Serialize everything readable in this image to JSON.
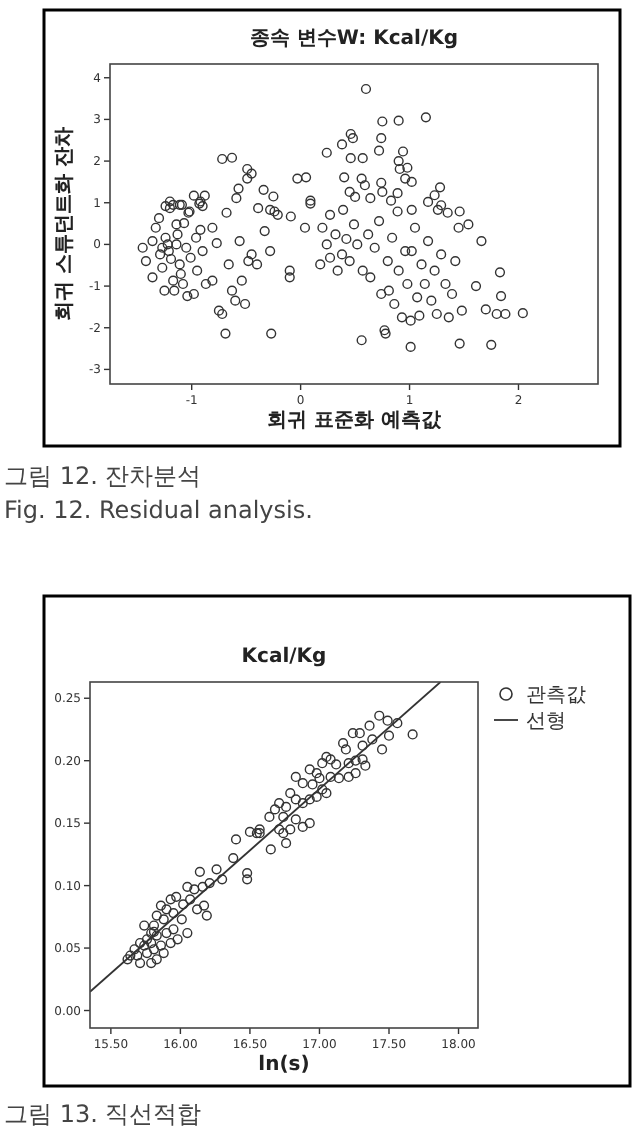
{
  "chart_data": [
    {
      "type": "scatter",
      "title": "종속 변수W: Kcal/Kg",
      "xlabel": "회귀 표준화 예측값",
      "ylabel": "회귀 스튜던트화 잔차",
      "xlim": [
        -1.75,
        2.73
      ],
      "ylim": [
        -3.35,
        4.33
      ],
      "xticks": [
        -1,
        0,
        1,
        2
      ],
      "yticks": [
        -3,
        -2,
        -1,
        0,
        1,
        2,
        3,
        4
      ],
      "marker": "circle",
      "series": [
        {
          "color": "#333333",
          "x": [
            0.6,
            0.75,
            0.9,
            1.15,
            0.46,
            0.48,
            0.38,
            0.74,
            0.94,
            0.24,
            0.46,
            0.57,
            0.72,
            0.9,
            0.98,
            0.91,
            -0.72,
            -0.63,
            -0.49,
            -0.45,
            -0.03,
            0.05,
            0.4,
            0.56,
            0.59,
            0.74,
            0.96,
            1.02,
            1.28,
            1.23,
            1.17,
            1.29,
            0.75,
            0.89,
            0.83,
            0.45,
            0.5,
            0.64,
            -0.34,
            -0.25,
            -0.57,
            -0.59,
            0.09,
            -0.49,
            -0.98,
            -0.88,
            -0.92,
            -1.2,
            -1.24,
            -1.17,
            -1.09,
            -1.03,
            -0.9,
            -0.68,
            -0.39,
            -0.28,
            -0.21,
            -0.09,
            0.27,
            0.39,
            1.35,
            1.46,
            1.02,
            1.26,
            -1.45,
            -1.42,
            -1.36,
            -1.33,
            -1.29,
            -1.27,
            -1.24,
            -1.22,
            -1.21,
            -1.19,
            -1.17,
            -1.16,
            -1.14,
            -1.13,
            -1.11,
            -1.1,
            -1.07,
            -1.05,
            -1.04,
            -1.01,
            -0.98,
            -0.96,
            -0.95,
            -0.92,
            -0.9,
            -0.87,
            -1.36,
            -1.3,
            -1.2,
            -1.11,
            -1.02,
            -0.93,
            -1.25,
            -1.08,
            -1.14,
            -1.27,
            -0.81,
            -0.77,
            -0.81,
            -0.75,
            -0.72,
            -0.69,
            -0.66,
            -0.63,
            -0.6,
            -0.56,
            -0.54,
            -0.51,
            -0.48,
            -0.45,
            -0.4,
            -0.33,
            -0.28,
            -0.27,
            -0.24,
            -0.1,
            -0.1,
            0.04,
            0.09,
            0.18,
            0.2,
            0.24,
            0.27,
            0.32,
            0.34,
            0.38,
            0.42,
            0.45,
            0.49,
            0.52,
            0.56,
            0.57,
            0.62,
            0.64,
            0.68,
            0.72,
            0.74,
            0.77,
            0.78,
            0.8,
            0.81,
            0.84,
            0.86,
            0.89,
            0.9,
            0.93,
            0.96,
            0.98,
            1.01,
            1.01,
            1.02,
            1.05,
            1.07,
            1.09,
            1.11,
            1.14,
            1.17,
            1.2,
            1.23,
            1.25,
            1.29,
            1.33,
            1.36,
            1.39,
            1.42,
            1.45,
            1.46,
            1.48,
            1.54,
            1.61,
            1.66,
            1.7,
            1.75,
            1.8,
            1.83,
            1.84,
            1.88,
            2.04
          ],
          "values": [
            3.73,
            2.95,
            2.97,
            3.05,
            2.65,
            2.55,
            2.4,
            2.55,
            2.23,
            2.2,
            2.07,
            2.07,
            2.25,
            2.0,
            1.84,
            1.81,
            2.05,
            2.08,
            1.81,
            1.7,
            1.58,
            1.61,
            1.61,
            1.58,
            1.42,
            1.48,
            1.58,
            1.5,
            1.37,
            1.18,
            1.02,
            0.94,
            1.26,
            1.23,
            1.05,
            1.26,
            1.14,
            1.11,
            1.31,
            1.15,
            1.34,
            1.11,
            1.05,
            1.58,
            1.17,
            1.17,
            1.03,
            1.03,
            0.92,
            0.95,
            0.95,
            0.76,
            0.92,
            0.76,
            0.87,
            0.83,
            0.71,
            0.67,
            0.71,
            0.83,
            0.76,
            0.79,
            0.83,
            0.83,
            -0.08,
            -0.4,
            0.08,
            0.4,
            -0.24,
            -0.56,
            0.16,
            0.0,
            -0.16,
            -0.35,
            -0.87,
            -1.11,
            0.48,
            0.24,
            -0.48,
            -0.71,
            0.51,
            -0.08,
            -1.24,
            -0.32,
            -1.19,
            0.16,
            -0.63,
            0.35,
            -0.16,
            -0.95,
            -0.79,
            0.63,
            0.87,
            0.95,
            0.79,
            0.98,
            -1.11,
            -0.95,
            0.0,
            -0.08,
            0.4,
            0.03,
            -0.87,
            -1.59,
            -1.67,
            -2.14,
            -0.48,
            -1.11,
            -1.35,
            0.08,
            -0.87,
            -1.43,
            -0.4,
            -0.24,
            -0.48,
            0.32,
            -0.16,
            -2.14,
            0.79,
            -0.63,
            -0.79,
            0.4,
            0.98,
            -0.48,
            0.4,
            0.0,
            -0.32,
            0.24,
            -0.63,
            -0.24,
            0.13,
            -0.4,
            0.48,
            0.0,
            -2.3,
            -0.63,
            0.24,
            -0.79,
            -0.08,
            0.56,
            -1.19,
            -2.06,
            -2.14,
            -0.4,
            -1.11,
            0.16,
            -1.43,
            0.79,
            -0.63,
            -1.75,
            -0.16,
            -0.95,
            -1.83,
            -2.46,
            -0.16,
            0.4,
            -1.27,
            -1.71,
            -0.48,
            -0.95,
            0.08,
            -1.35,
            -0.63,
            -1.67,
            -0.24,
            -0.95,
            -1.75,
            -1.19,
            -0.4,
            0.4,
            -2.38,
            -1.59,
            0.48,
            -1.0,
            0.08,
            -1.56,
            -2.41,
            -1.67,
            -0.67,
            -1.24,
            -1.67,
            -1.65
          ]
        }
      ],
      "annotations": [
        "그림 12. 잔차분석",
        "Fig. 12. Residual analysis."
      ]
    },
    {
      "type": "scatter",
      "title": "Kcal/Kg",
      "xlabel": "ln(s)",
      "xlim": [
        15.35,
        18.14
      ],
      "ylim": [
        -0.014,
        0.263
      ],
      "xticks": [
        {
          "value": 15.5,
          "label": "15.50"
        },
        {
          "value": 16,
          "label": "16.00"
        },
        {
          "value": 16.5,
          "label": "16.50"
        },
        {
          "value": 17,
          "label": "17.00"
        },
        {
          "value": 17.5,
          "label": "17.50"
        },
        {
          "value": 18,
          "label": "18.00"
        }
      ],
      "yticks": [
        {
          "value": 0,
          "label": "0.00"
        },
        {
          "value": 0.05,
          "label": "0.05"
        },
        {
          "value": 0.1,
          "label": "0.10"
        },
        {
          "value": 0.15,
          "label": "0.15"
        },
        {
          "value": 0.2,
          "label": "0.20"
        },
        {
          "value": 0.25,
          "label": "0.25"
        }
      ],
      "legend": "right",
      "series": [
        {
          "name": "관측값",
          "type": "scatter",
          "marker": "circle",
          "color": "#333333",
          "x": [
            17.43,
            17.49,
            17.56,
            17.67,
            17.5,
            17.36,
            17.29,
            17.24,
            17.38,
            17.31,
            17.45,
            17.17,
            17.19,
            17.05,
            17.08,
            17.02,
            17.12,
            17.21,
            17.26,
            17.31,
            17.33,
            16.93,
            16.98,
            17.0,
            17.08,
            17.14,
            17.21,
            17.26,
            16.83,
            16.88,
            16.95,
            17.02,
            16.98,
            17.05,
            16.79,
            16.83,
            16.88,
            16.93,
            16.76,
            16.71,
            16.68,
            16.74,
            16.64,
            16.55,
            16.5,
            16.57,
            16.79,
            16.88,
            16.93,
            16.83,
            16.74,
            16.76,
            16.65,
            16.71,
            16.57,
            16.4,
            16.38,
            16.48,
            16.48,
            16.26,
            16.3,
            16.21,
            16.14,
            16.16,
            16.1,
            16.05,
            16.07,
            16.02,
            15.97,
            15.93,
            15.9,
            15.86,
            15.95,
            16.01,
            16.12,
            16.17,
            16.19,
            16.05,
            15.88,
            15.83,
            15.81,
            15.79,
            15.83,
            15.74,
            15.76,
            15.71,
            15.67,
            15.69,
            15.64,
            15.76,
            15.81,
            15.86,
            15.71,
            15.79,
            15.83,
            15.88,
            15.93,
            15.9,
            15.95,
            15.98,
            15.74,
            15.79,
            15.62,
            15.81
          ],
          "values": [
            0.236,
            0.232,
            0.23,
            0.221,
            0.22,
            0.228,
            0.222,
            0.222,
            0.217,
            0.212,
            0.209,
            0.214,
            0.209,
            0.203,
            0.201,
            0.198,
            0.197,
            0.198,
            0.2,
            0.201,
            0.196,
            0.193,
            0.19,
            0.186,
            0.187,
            0.186,
            0.187,
            0.19,
            0.187,
            0.182,
            0.181,
            0.177,
            0.171,
            0.174,
            0.174,
            0.169,
            0.166,
            0.169,
            0.163,
            0.166,
            0.161,
            0.155,
            0.155,
            0.142,
            0.143,
            0.145,
            0.145,
            0.147,
            0.15,
            0.153,
            0.142,
            0.134,
            0.129,
            0.145,
            0.142,
            0.137,
            0.122,
            0.11,
            0.105,
            0.113,
            0.105,
            0.102,
            0.111,
            0.099,
            0.097,
            0.099,
            0.089,
            0.085,
            0.091,
            0.089,
            0.081,
            0.084,
            0.078,
            0.073,
            0.081,
            0.084,
            0.076,
            0.062,
            0.073,
            0.076,
            0.068,
            0.062,
            0.06,
            0.068,
            0.057,
            0.054,
            0.049,
            0.044,
            0.044,
            0.046,
            0.049,
            0.052,
            0.038,
            0.038,
            0.041,
            0.046,
            0.054,
            0.062,
            0.065,
            0.057,
            0.052,
            0.054,
            0.041,
            0.063
          ]
        },
        {
          "name": "선형",
          "type": "line",
          "marker": "none",
          "color": "#333333",
          "x": [
            15.35,
            17.87
          ],
          "values": [
            0.015,
            0.263
          ]
        }
      ],
      "annotations": [
        "그림 13. 직선적합"
      ]
    }
  ]
}
